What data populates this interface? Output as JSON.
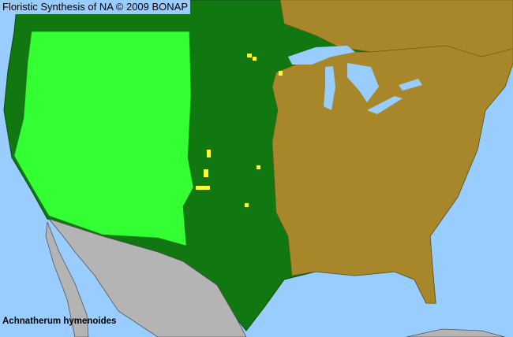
{
  "title": "Floristic Synthesis of NA © 2009 BONAP",
  "species": "Achnatherum hymenoides",
  "colors": {
    "water": "#99ccff",
    "present_native": "#00aa00",
    "present_dark": "#117711",
    "county_present": "#33ff33",
    "not_present": "#a8862a",
    "rare_or_noxious": "#ffff33",
    "outside_range": "#b4b4b4"
  }
}
